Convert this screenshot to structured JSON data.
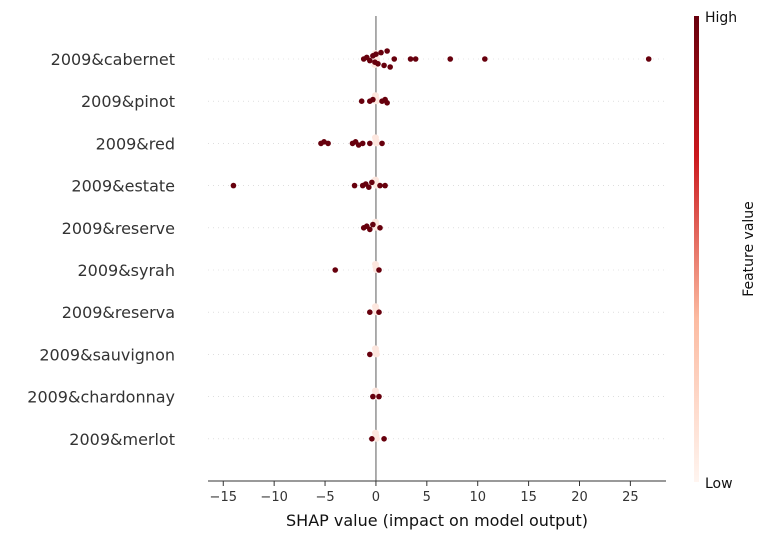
{
  "chart_data": {
    "type": "scatter",
    "subtype": "shap-beeswarm",
    "xlabel": "SHAP value (impact on model output)",
    "xlim": [
      -16.5,
      28.5
    ],
    "x_ticks": [
      -15,
      -10,
      -5,
      0,
      5,
      10,
      15,
      20,
      25
    ],
    "x_tick_labels": [
      "−15",
      "−10",
      "−5",
      "0",
      "5",
      "10",
      "15",
      "20",
      "25"
    ],
    "grid": false,
    "features": [
      {
        "name": "2009&cabernet",
        "values": [
          -1.2,
          -0.9,
          -0.6,
          -0.3,
          -0.1,
          0.0,
          0.2,
          0.5,
          0.8,
          1.1,
          1.4,
          1.8,
          3.4,
          3.9,
          7.3,
          10.7,
          26.8
        ],
        "low_values": [
          -0.05,
          0.0,
          0.05,
          0.1,
          -0.1
        ]
      },
      {
        "name": "2009&pinot",
        "values": [
          -1.4,
          -0.6,
          -0.3,
          0.6,
          0.9,
          1.1
        ],
        "low_values": [
          -0.05,
          0.0,
          0.05
        ]
      },
      {
        "name": "2009&red",
        "values": [
          -5.4,
          -5.1,
          -4.7,
          -2.3,
          -2.0,
          -1.7,
          -1.3,
          -0.6,
          0.6
        ],
        "low_values": [
          -0.05,
          0.0,
          0.05
        ]
      },
      {
        "name": "2009&estate",
        "values": [
          -14.0,
          -2.1,
          -1.3,
          -1.0,
          -0.7,
          -0.4,
          0.4,
          0.9
        ],
        "low_values": [
          -0.05,
          0.0,
          0.05
        ]
      },
      {
        "name": "2009&reserve",
        "values": [
          -1.2,
          -0.9,
          -0.6,
          -0.3,
          0.4
        ],
        "low_values": [
          -0.05,
          0.0,
          0.05
        ]
      },
      {
        "name": "2009&syrah",
        "values": [
          -4.0,
          0.3
        ],
        "low_values": [
          -0.05,
          0.0,
          0.05
        ]
      },
      {
        "name": "2009&reserva",
        "values": [
          -0.6,
          0.3
        ],
        "low_values": [
          -0.05,
          0.0,
          0.05
        ]
      },
      {
        "name": "2009&sauvignon",
        "values": [
          -0.6
        ],
        "low_values": [
          -0.05,
          0.0,
          0.05
        ]
      },
      {
        "name": "2009&chardonnay",
        "values": [
          -0.3,
          0.3
        ],
        "low_values": [
          -0.05,
          0.0,
          0.05
        ]
      },
      {
        "name": "2009&merlot",
        "values": [
          -0.4,
          0.8
        ],
        "low_values": [
          -0.05,
          0.0,
          0.05
        ]
      }
    ],
    "colorbar": {
      "title": "Feature value",
      "high_label": "High",
      "low_label": "Low",
      "high_color": "#67000d",
      "mid_color": "#cb181d",
      "light_color": "#fcbba1",
      "low_color": "#fff5f0"
    },
    "colors": {
      "high_point": "#67000d",
      "low_point": "#fde7df",
      "zero_line": "#999999",
      "row_guide": "#cccccc",
      "axis": "#333333"
    }
  }
}
